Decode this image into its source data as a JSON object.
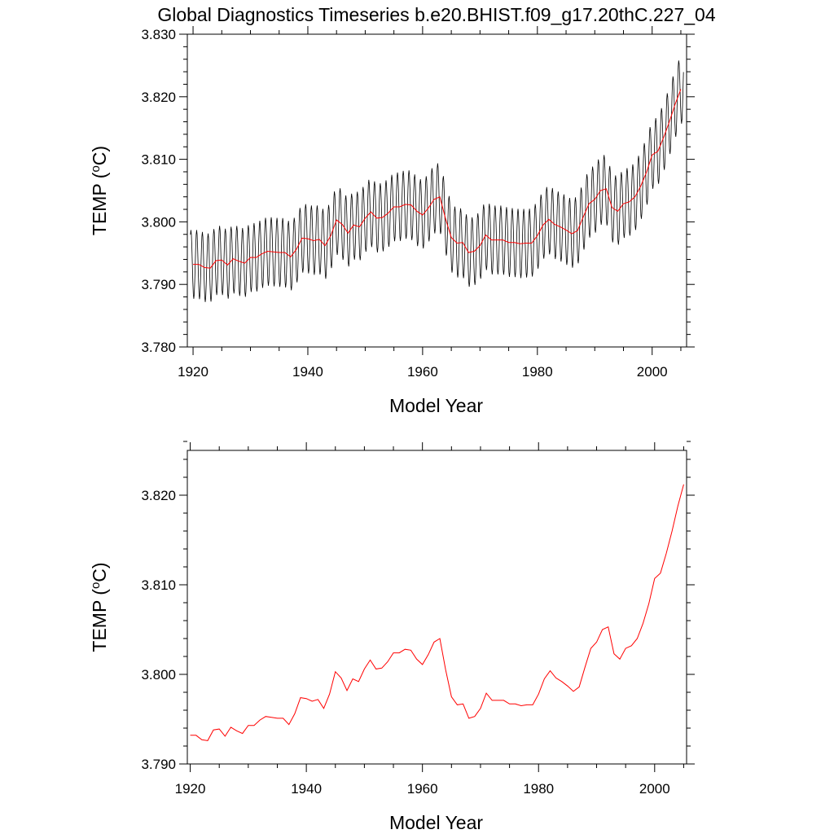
{
  "title": "Global Diagnostics Timeseries b.e20.BHIST.f09_g17.20thC.227_04",
  "chart_data": [
    {
      "type": "line",
      "xlabel": "Model Year",
      "ylabel": "TEMP (",
      "ylabel_sup": "o",
      "ylabel_unit": "C)",
      "xlim": [
        1919,
        2006
      ],
      "ylim": [
        3.78,
        3.83
      ],
      "xticks": [
        1920,
        1940,
        1960,
        1980,
        2000
      ],
      "xtick_labels": [
        "1920",
        "1940",
        "1960",
        "1980",
        "2000"
      ],
      "yticks": [
        3.78,
        3.79,
        3.8,
        3.81,
        3.82,
        3.83
      ],
      "ytick_labels": [
        "3.780",
        "3.790",
        "3.800",
        "3.810",
        "3.820",
        "3.830"
      ],
      "grid": false,
      "series": [
        {
          "kind": "monthly",
          "color": "#000000",
          "seasonal_amplitude": 0.0055
        },
        {
          "kind": "annual",
          "color": "#ff0000"
        }
      ]
    },
    {
      "type": "line",
      "xlabel": "Model Year",
      "ylabel": "TEMP (",
      "ylabel_sup": "o",
      "ylabel_unit": "C)",
      "xlim": [
        1919.5,
        2005.5
      ],
      "ylim": [
        3.79,
        3.825
      ],
      "xticks": [
        1920,
        1940,
        1960,
        1980,
        2000
      ],
      "xtick_labels": [
        "1920",
        "1940",
        "1960",
        "1980",
        "2000"
      ],
      "yticks": [
        3.79,
        3.8,
        3.81,
        3.82
      ],
      "ytick_labels": [
        "3.790",
        "3.800",
        "3.810",
        "3.820"
      ],
      "grid": false,
      "series": [
        {
          "kind": "annual",
          "color": "#ff0000"
        }
      ]
    }
  ],
  "annual_means": {
    "x": [
      1920,
      1921,
      1922,
      1923,
      1924,
      1925,
      1926,
      1927,
      1928,
      1929,
      1930,
      1931,
      1932,
      1933,
      1934,
      1935,
      1936,
      1937,
      1938,
      1939,
      1940,
      1941,
      1942,
      1943,
      1944,
      1945,
      1946,
      1947,
      1948,
      1949,
      1950,
      1951,
      1952,
      1953,
      1954,
      1955,
      1956,
      1957,
      1958,
      1959,
      1960,
      1961,
      1962,
      1963,
      1964,
      1965,
      1966,
      1967,
      1968,
      1969,
      1970,
      1971,
      1972,
      1973,
      1974,
      1975,
      1976,
      1977,
      1978,
      1979,
      1980,
      1981,
      1982,
      1983,
      1984,
      1985,
      1986,
      1987,
      1988,
      1989,
      1990,
      1991,
      1992,
      1993,
      1994,
      1995,
      1996,
      1997,
      1998,
      1999,
      2000,
      2001,
      2002,
      2003,
      2004,
      2005
    ],
    "y": [
      3.7932,
      3.7932,
      3.7927,
      3.7926,
      3.7938,
      3.7939,
      3.7931,
      3.7941,
      3.7937,
      3.7934,
      3.7943,
      3.7943,
      3.7949,
      3.7953,
      3.7952,
      3.7951,
      3.7951,
      3.7944,
      3.7956,
      3.7974,
      3.7973,
      3.797,
      3.7972,
      3.7962,
      3.7978,
      3.8003,
      3.7996,
      3.7982,
      3.7995,
      3.7992,
      3.8006,
      3.8016,
      3.8006,
      3.8007,
      3.8014,
      3.8024,
      3.8024,
      3.8028,
      3.8027,
      3.8017,
      3.8011,
      3.8022,
      3.8036,
      3.804,
      3.8005,
      3.7975,
      3.7966,
      3.7967,
      3.7951,
      3.7953,
      3.7962,
      3.7979,
      3.7971,
      3.7971,
      3.7971,
      3.7967,
      3.7967,
      3.7965,
      3.7966,
      3.7966,
      3.7978,
      3.7995,
      3.8004,
      3.7996,
      3.7992,
      3.7987,
      3.7981,
      3.7986,
      3.8008,
      3.8029,
      3.8036,
      3.805,
      3.8053,
      3.8023,
      3.8017,
      3.8029,
      3.8032,
      3.804,
      3.8057,
      3.8079,
      3.8107,
      3.8113,
      3.8135,
      3.816,
      3.8188,
      3.8212
    ]
  }
}
